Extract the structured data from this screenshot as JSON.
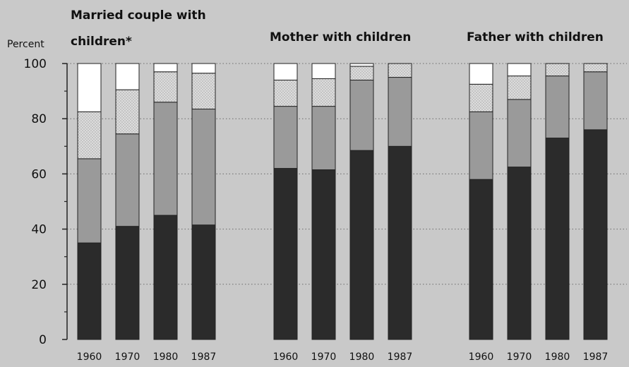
{
  "chart_data": {
    "type": "bar",
    "stacked": true,
    "ylabel": "Percent",
    "ylim": [
      0,
      100
    ],
    "yticks": [
      0,
      20,
      40,
      60,
      80,
      100
    ],
    "grid": "dotted horizontal",
    "categories": [
      "1960",
      "1970",
      "1980",
      "1987"
    ],
    "panels": [
      {
        "title_lines": [
          "Married couple with",
          "children*"
        ],
        "series": [
          {
            "values": [
              35,
              41,
              45,
              41.5
            ],
            "color": "#2b2b2b"
          },
          {
            "values": [
              30.5,
              33.5,
              41,
              42
            ],
            "color": "#9a9a9a"
          },
          {
            "values": [
              17,
              16,
              11,
              13
            ],
            "color": "#d6d6d6"
          },
          {
            "values": [
              17.5,
              9.5,
              3,
              3.5
            ],
            "color": "#ffffff"
          }
        ]
      },
      {
        "title_lines": [
          "Mother with children"
        ],
        "series": [
          {
            "values": [
              62,
              61.5,
              68.5,
              70
            ],
            "color": "#2b2b2b"
          },
          {
            "values": [
              22.5,
              23,
              25.5,
              25
            ],
            "color": "#9a9a9a"
          },
          {
            "values": [
              9.5,
              10,
              5,
              5
            ],
            "color": "#d6d6d6"
          },
          {
            "values": [
              6,
              5.5,
              1,
              0
            ],
            "color": "#ffffff"
          }
        ]
      },
      {
        "title_lines": [
          "Father with children"
        ],
        "series": [
          {
            "values": [
              58,
              62.5,
              73,
              76
            ],
            "color": "#2b2b2b"
          },
          {
            "values": [
              24.5,
              24.5,
              22.5,
              21
            ],
            "color": "#9a9a9a"
          },
          {
            "values": [
              10,
              8.5,
              4.5,
              3
            ],
            "color": "#d6d6d6"
          },
          {
            "values": [
              7.5,
              4.5,
              0,
              0
            ],
            "color": "#ffffff"
          }
        ]
      }
    ]
  }
}
